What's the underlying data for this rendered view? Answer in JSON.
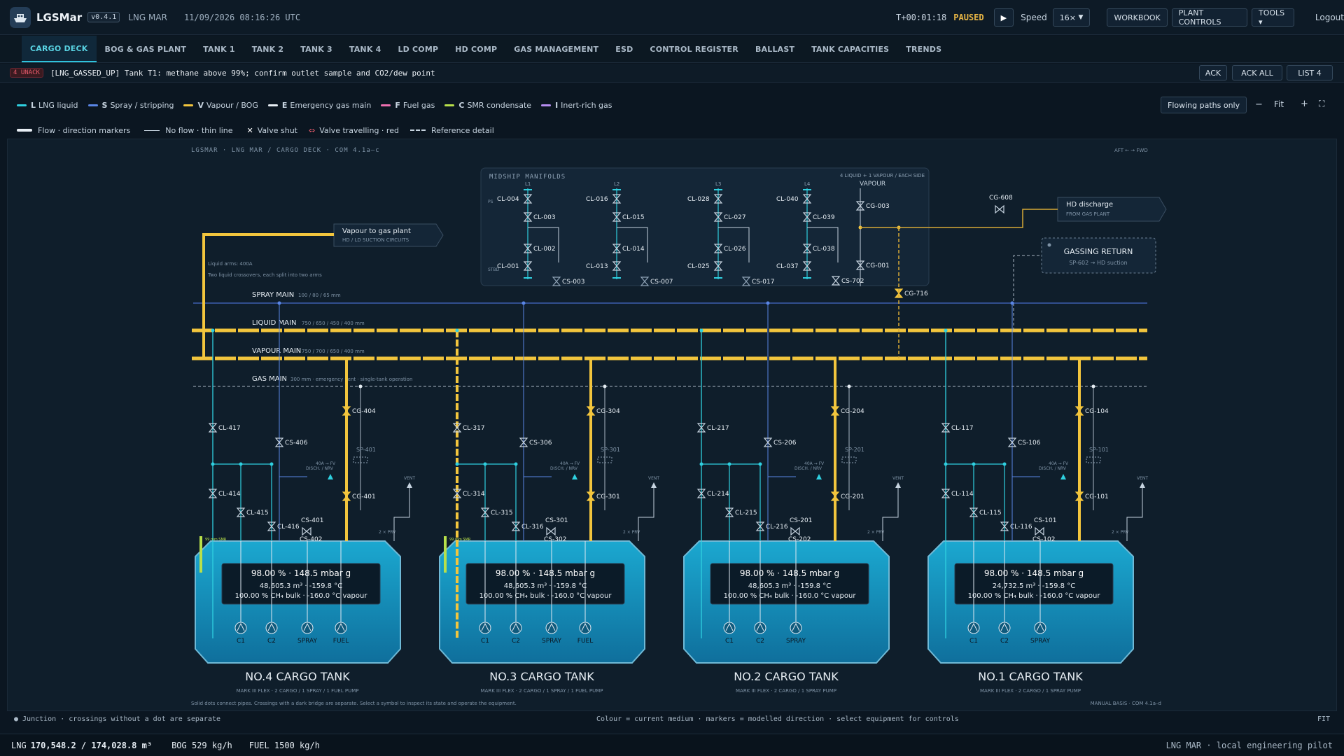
{
  "app": {
    "name": "LGSMar",
    "version": "v0.4.1",
    "ship": "LNG MAR",
    "datetime": "11/09/2026 08:16:26 UTC",
    "sim_time": "T+00:01:18",
    "status": "PAUSED",
    "speed_label": "Speed",
    "speed_value": "16×",
    "workbook": "WORKBOOK",
    "plant_controls": "PLANT CONTROLS",
    "tools": "TOOLS ▾",
    "logout": "Logout"
  },
  "tabs": [
    "CARGO DECK",
    "BOG & GAS PLANT",
    "TANK 1",
    "TANK 2",
    "TANK 3",
    "TANK 4",
    "LD COMP",
    "HD COMP",
    "GAS MANAGEMENT",
    "ESD",
    "CONTROL REGISTER",
    "BALLAST",
    "TANK CAPACITIES",
    "TRENDS"
  ],
  "alarm": {
    "unack": "4 UNACK",
    "text": "[LNG_GASSED_UP] Tank T1: methane above 99%; confirm outlet sample and CO2/dew point",
    "ack": "ACK",
    "ack_all": "ACK ALL",
    "list": "LIST 4"
  },
  "legend": [
    {
      "key": "L",
      "label": "LNG liquid",
      "color": "#2fd0e0"
    },
    {
      "key": "S",
      "label": "Spray / stripping",
      "color": "#5a86e6"
    },
    {
      "key": "V",
      "label": "Vapour / BOG",
      "color": "#f2c53d"
    },
    {
      "key": "E",
      "label": "Emergency gas main",
      "color": "#e8eef4"
    },
    {
      "key": "F",
      "label": "Fuel gas",
      "color": "#ee6fb0"
    },
    {
      "key": "C",
      "label": "SMR condensate",
      "color": "#b8e04a"
    },
    {
      "key": "I",
      "label": "Inert-rich gas",
      "color": "#b58df0"
    }
  ],
  "legend2": {
    "flow": "Flow · direction markers",
    "noflow": "No flow · thin line",
    "shut": "Valve shut",
    "travel": "Valve travelling · red",
    "ref": "Reference detail"
  },
  "view": {
    "flowing_only": "Flowing paths only",
    "zoom_out": "−",
    "fit": "Fit",
    "zoom_in": "+",
    "fullscreen": "⛶"
  },
  "diagram": {
    "heading": "LGSMAR · LNG MAR / CARGO DECK · COM 4.1a–c",
    "aft": "AFT ← → FWD",
    "manifold_title": "MIDSHIP MANIFOLDS",
    "manifold_sub": "4 LIQUID + 1 VAPOUR / EACH SIDE",
    "vapour_label": "VAPOUR",
    "vapour_box": {
      "title": "Vapour to gas plant",
      "sub": "HD / LD SUCTION CIRCUITS"
    },
    "hd_box": {
      "title": "HD discharge",
      "sub": "FROM GAS PLANT"
    },
    "gassing_box": {
      "title": "GASSING RETURN",
      "sub": "SP-602 → HD suction"
    },
    "liquid_arms": "Liquid arms: 400A",
    "crossovers": "Two liquid crossovers, each split into two arms",
    "mains": [
      {
        "name": "SPRAY MAIN",
        "spec": "100 / 80 / 65 mm"
      },
      {
        "name": "LIQUID MAIN",
        "spec": "750 / 650 / 450 / 400 mm"
      },
      {
        "name": "VAPOUR MAIN",
        "spec": "750 / 700 / 650 / 400 mm"
      },
      {
        "name": "GAS MAIN",
        "spec": "300 mm · emergency vent · single-tank operation"
      }
    ],
    "manifold_valves": [
      "L1",
      "L2",
      "L3",
      "L4",
      "CL-004",
      "CL-003",
      "CL-002",
      "CL-001",
      "CL-016",
      "CL-015",
      "CL-014",
      "CL-013",
      "CL-028",
      "CL-027",
      "CL-026",
      "CL-025",
      "CL-040",
      "CL-039",
      "CL-038",
      "CL-037",
      "CG-003",
      "CG-001",
      "CS-003",
      "CS-007",
      "CS-017",
      "CS-702",
      "CG-716",
      "CG-608",
      "PS",
      "STBD"
    ],
    "tanks": [
      {
        "name": "NO.4 CARGO TANK",
        "sub": "MARK III FLEX · 2 CARGO / 1 SPRAY / 1 FUEL PUMP",
        "level": "98.00 % · 148.5 mbar g",
        "volume": "48,605.3 m³ · -159.8 °C",
        "comp": "100.00 % CH₄ bulk · -160.0 °C vapour",
        "pumps": [
          "C1",
          "C2",
          "SPRAY",
          "FUEL"
        ],
        "valves": [
          "CL-417",
          "CL-414",
          "CL-415",
          "CL-416",
          "CS-406",
          "CS-401",
          "CS-402",
          "CG-404",
          "CG-401",
          "SP-401"
        ],
        "gauge": "99 mm SMR"
      },
      {
        "name": "NO.3 CARGO TANK",
        "sub": "MARK III FLEX · 2 CARGO / 1 SPRAY / 1 FUEL PUMP",
        "level": "98.00 % · 148.5 mbar g",
        "volume": "48,605.3 m³ · -159.8 °C",
        "comp": "100.00 % CH₄ bulk · -160.0 °C vapour",
        "pumps": [
          "C1",
          "C2",
          "SPRAY",
          "FUEL"
        ],
        "valves": [
          "CL-317",
          "CL-314",
          "CL-315",
          "CL-316",
          "CS-306",
          "CS-301",
          "CS-302",
          "CG-304",
          "CG-301",
          "SP-301"
        ],
        "gauge": "99 mm SMR"
      },
      {
        "name": "NO.2 CARGO TANK",
        "sub": "MARK III FLEX · 2 CARGO / 1 SPRAY PUMP",
        "level": "98.00 % · 148.5 mbar g",
        "volume": "48,605.3 m³ · -159.8 °C",
        "comp": "100.00 % CH₄ bulk · -160.0 °C vapour",
        "pumps": [
          "C1",
          "C2",
          "SPRAY"
        ],
        "valves": [
          "CL-217",
          "CL-214",
          "CL-215",
          "CL-216",
          "CS-206",
          "CS-201",
          "CS-202",
          "CG-204",
          "CG-201",
          "SP-201"
        ],
        "gauge": ""
      },
      {
        "name": "NO.1 CARGO TANK",
        "sub": "MARK III FLEX · 2 CARGO / 1 SPRAY PUMP",
        "level": "98.00 % · 148.5 mbar g",
        "volume": "24,732.5 m³ · -159.8 °C",
        "comp": "100.00 % CH₄ bulk · -160.0 °C vapour",
        "pumps": [
          "C1",
          "C2",
          "SPRAY"
        ],
        "valves": [
          "CL-117",
          "CL-114",
          "CL-115",
          "CL-116",
          "CS-106",
          "CS-101",
          "CS-102",
          "CG-104",
          "CG-101",
          "SP-101"
        ],
        "gauge": ""
      }
    ],
    "branch_labels": {
      "disch": "DISCH. / NRV",
      "fv": "40A → FV",
      "vent": "VENT",
      "prv": "2 × PRV"
    },
    "bottom_note": "Solid dots connect pipes. Crossings with a dark bridge are separate. Select a symbol to inspect its state and operate the equipment.",
    "manual_basis": "MANUAL BASIS · COM 4.1a–d",
    "junction_note": "● Junction · crossings without a dot are separate",
    "colour_note": "Colour = current medium · markers = modelled direction · select equipment for controls",
    "fit": "FIT"
  },
  "footer": {
    "lng_label": "LNG",
    "lng_value": "170,548.2 / 174,028.8 m³",
    "bog": "BOG 529 kg/h",
    "fuel": "FUEL 1500 kg/h",
    "right": "LNG MAR · local engineering pilot"
  },
  "colors": {
    "liquid": "#2fd0e0",
    "vapour": "#f2c53d",
    "spray": "#5a86e6",
    "tank_top": "#1ba8d0",
    "tank_bottom": "#0f6f9c",
    "accent": "#2fc3dc",
    "warn": "#e8b645"
  }
}
